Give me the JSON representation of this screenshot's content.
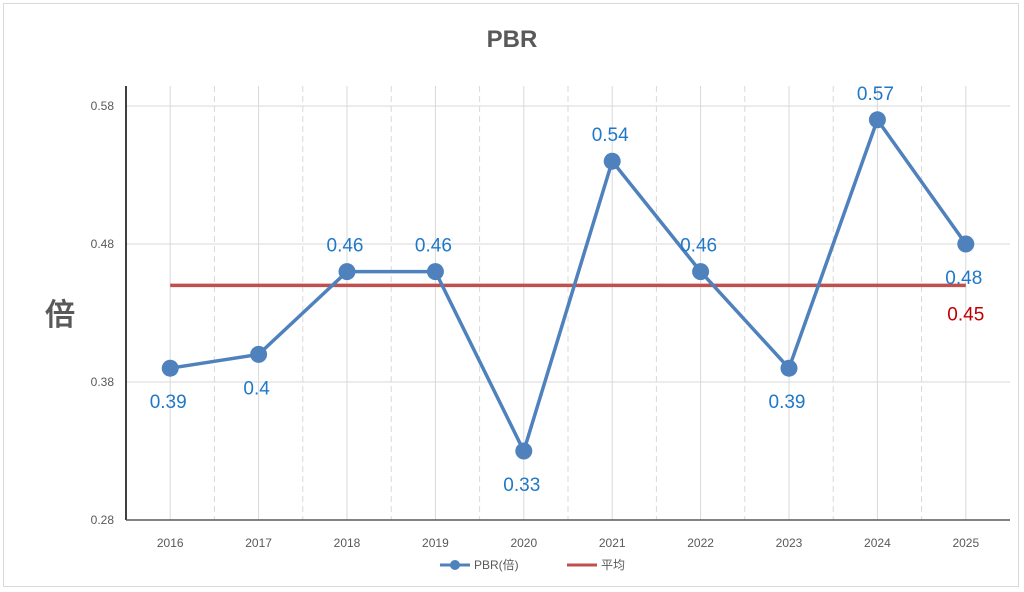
{
  "chart_data": {
    "type": "line",
    "title": "PBR",
    "xlabel": "",
    "ylabel": "倍",
    "categories": [
      "2016",
      "2017",
      "2018",
      "2019",
      "2020",
      "2021",
      "2022",
      "2023",
      "2024",
      "2025"
    ],
    "series": [
      {
        "name": "PBR(倍)",
        "values": [
          0.39,
          0.4,
          0.46,
          0.46,
          0.33,
          0.54,
          0.46,
          0.39,
          0.57,
          0.48
        ],
        "color": "#4f81bd"
      },
      {
        "name": "平均",
        "values": [
          0.45,
          0.45,
          0.45,
          0.45,
          0.45,
          0.45,
          0.45,
          0.45,
          0.45,
          0.45
        ],
        "color": "#c0504d"
      }
    ],
    "data_labels": [
      "0.39",
      "0.4",
      "0.46",
      "0.46",
      "0.33",
      "0.54",
      "0.46",
      "0.39",
      "0.57",
      "0.48"
    ],
    "average_label": "0.45",
    "ylim": [
      0.28,
      0.58
    ],
    "yticks": [
      "0.28",
      "0.38",
      "0.48",
      "0.58"
    ],
    "grid": true,
    "legend": "bottom"
  }
}
